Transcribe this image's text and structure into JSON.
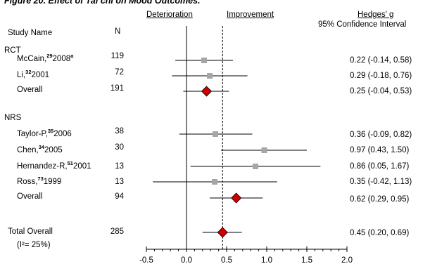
{
  "title": "Figure 20. Effect of Tai chi on Mood Outcomes.",
  "header": {
    "deterioration": "Deterioration",
    "improvement": "Improvement",
    "effect_label": "Hedges' g",
    "ci_label": "95% Confidence Interval",
    "study_name": "Study Name",
    "n": "N"
  },
  "groups": {
    "rct": "RCT",
    "nrs": "NRS"
  },
  "rows": [
    {
      "name": "McCain,",
      "ref": "29",
      "year": "2008",
      "suffix": "a",
      "n": "119",
      "ci_text": "0.22 (-0.14, 0.58)"
    },
    {
      "name": "Li,",
      "ref": "32",
      "year": "2001",
      "suffix": "",
      "n": "72",
      "ci_text": "0.29 (-0.18, 0.76)"
    },
    {
      "name": "Overall",
      "ref": "",
      "year": "",
      "suffix": "",
      "n": "191",
      "ci_text": "0.25 (-0.04, 0.53)"
    },
    {
      "name": "Taylor-P,",
      "ref": "35",
      "year": "2006",
      "suffix": "",
      "n": "38",
      "ci_text": "0.36 (-0.09, 0.82)"
    },
    {
      "name": "Chen,",
      "ref": "34",
      "year": "2005",
      "suffix": "",
      "n": "30",
      "ci_text": "0.97 (0.43, 1.50)"
    },
    {
      "name": "Hernandez-R,",
      "ref": "51",
      "year": "2001",
      "suffix": "",
      "n": "13",
      "ci_text": "0.86 (0.05, 1.67)"
    },
    {
      "name": "Ross,",
      "ref": "73",
      "year": "1999",
      "suffix": "",
      "n": "13",
      "ci_text": "0.35 (-0.42, 1.13)"
    },
    {
      "name": "Overall",
      "ref": "",
      "year": "",
      "suffix": "",
      "n": "94",
      "ci_text": "0.62 (0.29, 0.95)"
    },
    {
      "name": "Total Overall",
      "ref": "",
      "year": "",
      "suffix": "",
      "n": "285",
      "ci_text": "0.45 (0.20, 0.69)"
    }
  ],
  "heterogeneity": "(I²= 25%)",
  "chart_data": {
    "type": "forest",
    "xlim": [
      -0.5,
      2.0
    ],
    "x_ticks": [
      "-0.5",
      "0.0",
      "0.5",
      "1.0",
      "1.5",
      "2.0"
    ],
    "null_line": 0,
    "pooled_reference": 0.45,
    "colors": {
      "study": "#a6a6a6",
      "summary": "#cc0000",
      "line": "#000000"
    },
    "rows": [
      {
        "label": "McCain 2008",
        "kind": "study",
        "estimate": 0.22,
        "lower": -0.14,
        "upper": 0.58
      },
      {
        "label": "Li 2001",
        "kind": "study",
        "estimate": 0.29,
        "lower": -0.18,
        "upper": 0.76
      },
      {
        "label": "RCT Overall",
        "kind": "summary",
        "estimate": 0.25,
        "lower": -0.04,
        "upper": 0.53
      },
      {
        "label": "Taylor-P 2006",
        "kind": "study",
        "estimate": 0.36,
        "lower": -0.09,
        "upper": 0.82
      },
      {
        "label": "Chen 2005",
        "kind": "study",
        "estimate": 0.97,
        "lower": 0.43,
        "upper": 1.5
      },
      {
        "label": "Hernandez-R 2001",
        "kind": "study",
        "estimate": 0.86,
        "lower": 0.05,
        "upper": 1.67
      },
      {
        "label": "Ross 1999",
        "kind": "study",
        "estimate": 0.35,
        "lower": -0.42,
        "upper": 1.13
      },
      {
        "label": "NRS Overall",
        "kind": "summary",
        "estimate": 0.62,
        "lower": 0.29,
        "upper": 0.95
      },
      {
        "label": "Total Overall",
        "kind": "summary",
        "estimate": 0.45,
        "lower": 0.2,
        "upper": 0.69
      }
    ]
  }
}
